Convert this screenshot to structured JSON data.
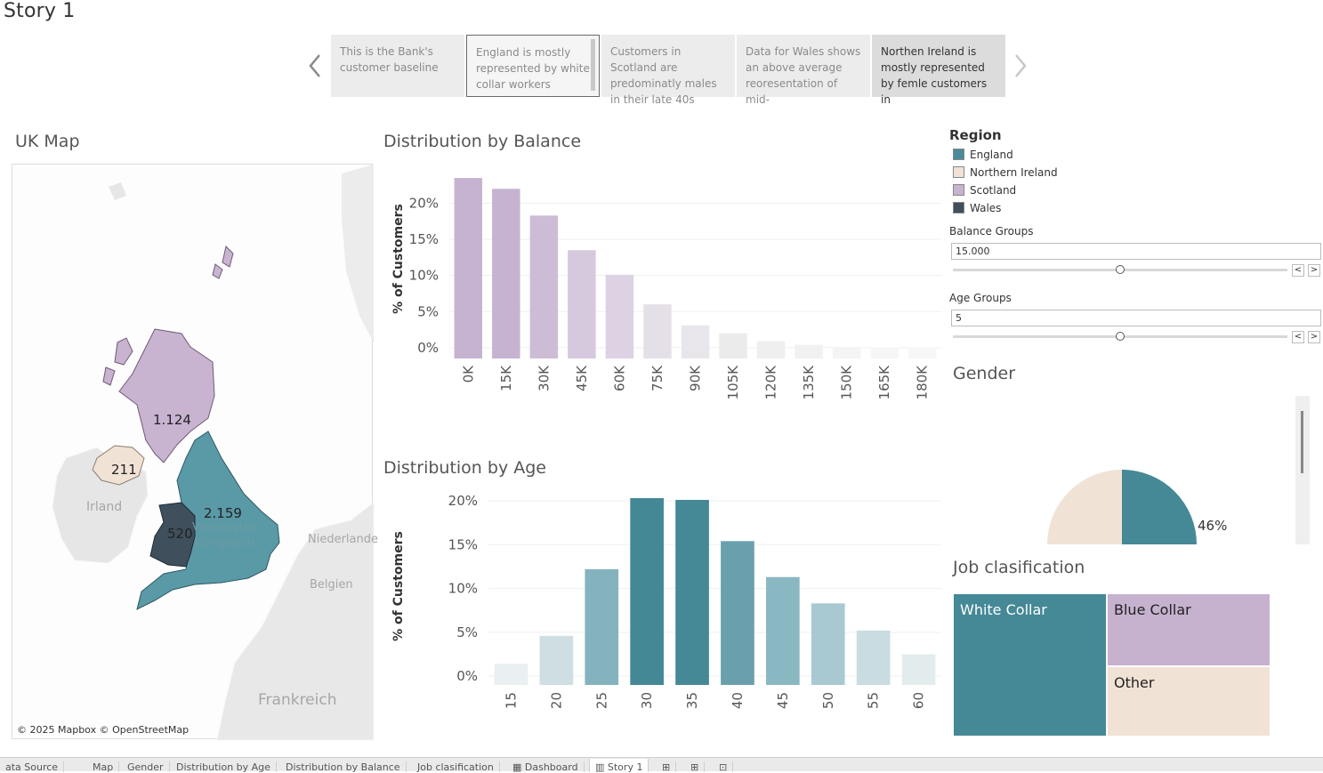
{
  "story": {
    "title": "Story 1"
  },
  "story_points": [
    {
      "text": "This is the Bank's customer baseline"
    },
    {
      "text": "England is mostly represented by white collar workers"
    },
    {
      "text": "Customers in Scotland are predominatly males in their late 40s"
    },
    {
      "text": "Data for Wales shows an above average reoresentation of mid-"
    },
    {
      "text": "Northen Ireland is mostly represented by femle customers in"
    }
  ],
  "map": {
    "title": "UK Map",
    "attribution": "© 2025 Mapbox © OpenStreetMap",
    "place_labels": [
      "Irland",
      "Vereinigtes",
      "Königreich",
      "Niederlande",
      "Belgien",
      "Frankreich"
    ],
    "regions": [
      {
        "name": "Scotland",
        "value": "1.124",
        "color": "#c8b3d1"
      },
      {
        "name": "Northern Ireland",
        "value": "211",
        "color": "#f1e2d6"
      },
      {
        "name": "England",
        "value": "2.159",
        "color": "#5a99a6"
      },
      {
        "name": "Wales",
        "value": "520",
        "color": "#3f4f5b"
      }
    ]
  },
  "legend": {
    "title": "Region",
    "items": [
      {
        "label": "England",
        "color": "#4a8a99"
      },
      {
        "label": "Northern Ireland",
        "color": "#f1e2d6"
      },
      {
        "label": "Scotland",
        "color": "#c8b3d1"
      },
      {
        "label": "Wales",
        "color": "#3f4f5b"
      }
    ]
  },
  "filters": {
    "balance": {
      "title": "Balance Groups",
      "value": "15.000",
      "prev": "<",
      "next": ">"
    },
    "age": {
      "title": "Age Groups",
      "value": "5",
      "prev": "<",
      "next": ">"
    }
  },
  "gender": {
    "title": "Gender",
    "label": "46%"
  },
  "job": {
    "title": "Job clasification",
    "cells": [
      {
        "label": "White Collar",
        "color": "#458896",
        "text_color": "#ffffff"
      },
      {
        "label": "Blue Collar",
        "color": "#c6b2cf",
        "text_color": "#222222"
      },
      {
        "label": "Other",
        "color": "#f1e2d6",
        "text_color": "#222222"
      }
    ]
  },
  "tabs": [
    "ata Source",
    "Map",
    "Gender",
    "Distribution by Age",
    "Distribution by Balance",
    "Job clasification",
    "Dashboard",
    "Story 1"
  ],
  "chart_data": [
    {
      "type": "bar",
      "title": "Distribution by Balance",
      "ylabel": "% of Customers",
      "categories": [
        "0K",
        "15K",
        "30K",
        "45K",
        "60K",
        "75K",
        "90K",
        "105K",
        "120K",
        "135K",
        "150K",
        "165K",
        "180K"
      ],
      "values": [
        23.5,
        22.0,
        18.3,
        13.5,
        10.1,
        6.0,
        3.1,
        2.0,
        0.9,
        0.4,
        0.1,
        0.05,
        0.02
      ],
      "ylim": [
        -1.5,
        24.5
      ],
      "yticks": [
        "0%",
        "5%",
        "10%",
        "15%",
        "20%"
      ],
      "ytick_values": [
        0,
        5,
        10,
        15,
        20
      ],
      "colors": [
        "#c6b3d1",
        "#c6b3d1",
        "#cdbcd6",
        "#d6c8dd",
        "#ddd2e3",
        "#e5e0e8",
        "#e8e6ea",
        "#ebebeb",
        "#efefef",
        "#f1f1f1",
        "#f4f4f4",
        "#f6f6f6",
        "#f7f7f7"
      ]
    },
    {
      "type": "bar",
      "title": "Distribution by Age",
      "ylabel": "% of Customers",
      "categories": [
        "15",
        "20",
        "25",
        "30",
        "35",
        "40",
        "45",
        "50",
        "55",
        "60"
      ],
      "values": [
        1.4,
        4.6,
        12.2,
        20.3,
        20.1,
        15.4,
        11.3,
        8.3,
        5.2,
        2.5
      ],
      "ylim": [
        -1.0,
        20.3
      ],
      "yticks": [
        "0%",
        "5%",
        "10%",
        "15%",
        "20%"
      ],
      "ytick_values": [
        0,
        5,
        10,
        15,
        20
      ],
      "colors": [
        "#eaeff1",
        "#cfdee3",
        "#84b3be",
        "#448896",
        "#458896",
        "#6aa0ad",
        "#8ab8c2",
        "#a8c9d1",
        "#c9dce1",
        "#e3eced"
      ]
    },
    {
      "type": "pie",
      "title": "Gender",
      "slices": [
        {
          "value": 46,
          "color": "#458896"
        },
        {
          "value": 54,
          "color": "#f1e2d6"
        }
      ]
    }
  ]
}
